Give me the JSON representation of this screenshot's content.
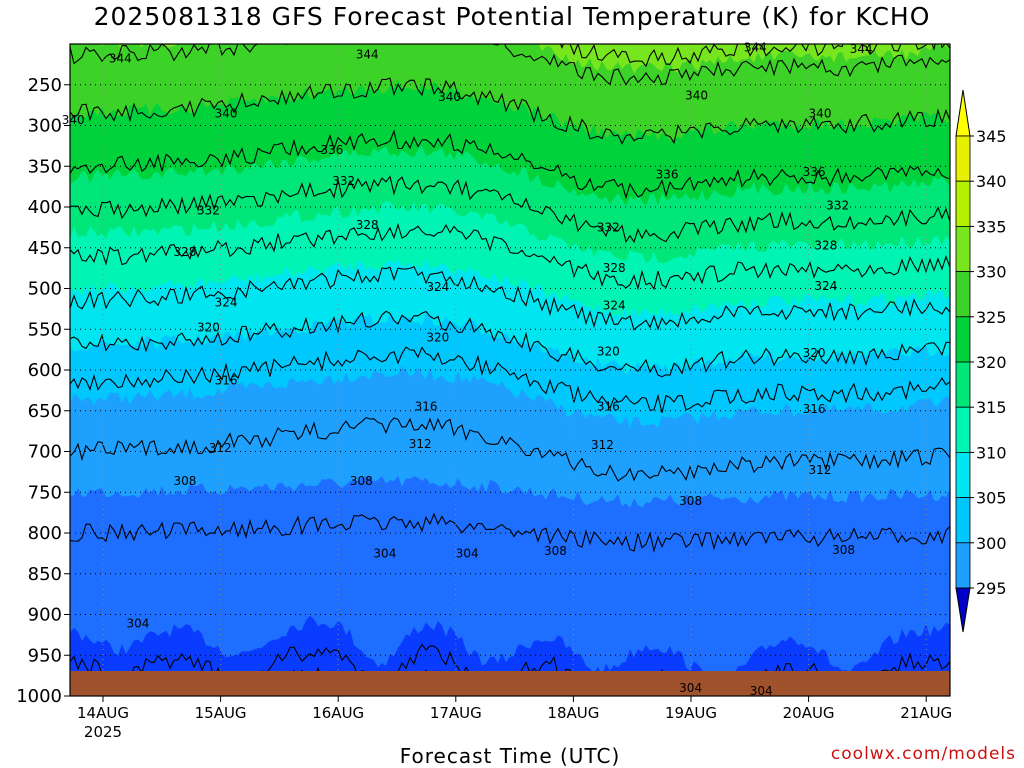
{
  "title": "2025081318 GFS Forecast Potential Temperature (K) for KCHO",
  "credit": "coolwx.com/models",
  "colors": {
    "ground": "#a0522d",
    "band_colors": [
      "#0000c8",
      "#0a3cff",
      "#1e6eff",
      "#1ea0ff",
      "#00c8ff",
      "#00e6f0",
      "#00f5b4",
      "#00e678",
      "#00d23c",
      "#3cd228",
      "#78e61e",
      "#b4f000",
      "#e6f000",
      "#ffff00"
    ]
  },
  "colorbar": {
    "ticks": [
      "345",
      "340",
      "335",
      "330",
      "325",
      "320",
      "315",
      "310",
      "305",
      "300",
      "295"
    ],
    "boundaries": [
      295,
      300,
      305,
      310,
      315,
      320,
      325,
      330,
      335,
      340,
      345
    ]
  },
  "chart_data": {
    "type": "heatmap",
    "title": "2025081318 GFS Forecast Potential Temperature (K) for KCHO",
    "xlabel": "Forecast Time (UTC)",
    "ylabel": "",
    "x_ticks": [
      "14AUG",
      "15AUG",
      "16AUG",
      "17AUG",
      "18AUG",
      "19AUG",
      "20AUG",
      "21AUG"
    ],
    "x_tick_sublabel": "2025",
    "y_ticks": [
      "250",
      "300",
      "350",
      "400",
      "450",
      "500",
      "550",
      "600",
      "650",
      "700",
      "750",
      "800",
      "850",
      "900",
      "950",
      "1000"
    ],
    "y_range_hPa": [
      200,
      1000
    ],
    "x_range_hours": [
      0,
      180
    ],
    "grid": true,
    "contour_interval_K": 4,
    "contour_labels": [
      {
        "value": "344",
        "day": 0.3,
        "p": 218
      },
      {
        "value": "344",
        "day": 2.4,
        "p": 213
      },
      {
        "value": "344",
        "day": 5.7,
        "p": 204
      },
      {
        "value": "344",
        "day": 6.6,
        "p": 206
      },
      {
        "value": "340",
        "day": -0.1,
        "p": 293
      },
      {
        "value": "340",
        "day": 1.2,
        "p": 285
      },
      {
        "value": "340",
        "day": 3.1,
        "p": 265
      },
      {
        "value": "340",
        "day": 5.2,
        "p": 263
      },
      {
        "value": "340",
        "day": 6.25,
        "p": 285
      },
      {
        "value": "336",
        "day": 2.1,
        "p": 330
      },
      {
        "value": "336",
        "day": 4.95,
        "p": 360
      },
      {
        "value": "336",
        "day": 6.2,
        "p": 357
      },
      {
        "value": "332",
        "day": 1.05,
        "p": 404
      },
      {
        "value": "332",
        "day": 2.2,
        "p": 368
      },
      {
        "value": "332",
        "day": 4.45,
        "p": 425
      },
      {
        "value": "332",
        "day": 6.4,
        "p": 398
      },
      {
        "value": "328",
        "day": 0.85,
        "p": 455
      },
      {
        "value": "328",
        "day": 2.4,
        "p": 422
      },
      {
        "value": "328",
        "day": 4.5,
        "p": 475
      },
      {
        "value": "328",
        "day": 6.3,
        "p": 447
      },
      {
        "value": "324",
        "day": 1.2,
        "p": 517
      },
      {
        "value": "324",
        "day": 3.0,
        "p": 498
      },
      {
        "value": "324",
        "day": 4.5,
        "p": 521
      },
      {
        "value": "324",
        "day": 6.3,
        "p": 497
      },
      {
        "value": "320",
        "day": 1.05,
        "p": 548
      },
      {
        "value": "320",
        "day": 3.0,
        "p": 560
      },
      {
        "value": "320",
        "day": 4.45,
        "p": 577
      },
      {
        "value": "320",
        "day": 6.2,
        "p": 579
      },
      {
        "value": "316",
        "day": 1.2,
        "p": 613
      },
      {
        "value": "316",
        "day": 2.9,
        "p": 645
      },
      {
        "value": "316",
        "day": 4.45,
        "p": 645
      },
      {
        "value": "316",
        "day": 6.2,
        "p": 648
      },
      {
        "value": "312",
        "day": 1.15,
        "p": 696
      },
      {
        "value": "312",
        "day": 2.85,
        "p": 691
      },
      {
        "value": "312",
        "day": 4.4,
        "p": 692
      },
      {
        "value": "312",
        "day": 6.25,
        "p": 723
      },
      {
        "value": "308",
        "day": 0.85,
        "p": 736
      },
      {
        "value": "308",
        "day": 2.35,
        "p": 736
      },
      {
        "value": "308",
        "day": 4.0,
        "p": 822
      },
      {
        "value": "308",
        "day": 5.15,
        "p": 761
      },
      {
        "value": "308",
        "day": 6.45,
        "p": 821
      },
      {
        "value": "304",
        "day": 0.45,
        "p": 911
      },
      {
        "value": "304",
        "day": 2.55,
        "p": 825
      },
      {
        "value": "304",
        "day": 3.25,
        "p": 825
      },
      {
        "value": "304",
        "day": 5.15,
        "p": 990
      },
      {
        "value": "304",
        "day": 5.75,
        "p": 994
      }
    ]
  }
}
